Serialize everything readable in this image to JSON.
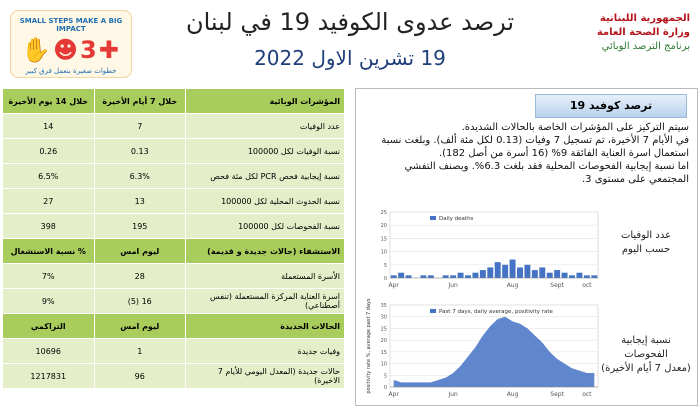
{
  "header": {
    "title": "ترصد عدوى الكوفيد 19 في لبنان",
    "date": "19 تشرين الاول 2022",
    "ministry": [
      "الجمهورية اللبنانية",
      "وزارة الصحة العامة",
      "برنامج الترصد الوبائي"
    ],
    "campaign": [
      "SMALL STEPS MAKE A BIG IMPACT",
      "خطوات صغيرة بتعمل فرق كبير"
    ]
  },
  "table": {
    "sections": [
      {
        "header": [
          "المؤشرات الوبائية",
          "خلال 7 أيام الأخيرة",
          "خلال 14 يوم الأخيرة"
        ],
        "rows": [
          [
            "عدد الوفيات",
            "7",
            "14"
          ],
          [
            "نسبة الوفيات لكل 100000",
            "0.13",
            "0.26"
          ],
          [
            "نسبة إيجابية فحص PCR لكل مئة فحص",
            "6.3%",
            "6.5%"
          ],
          [
            "نسبة الحدوث المحلية لكل 100000",
            "13",
            "27"
          ],
          [
            "نسبة الفحوصات لكل 100000",
            "195",
            "398"
          ]
        ]
      },
      {
        "header": [
          "الاستشفاء (حالات جديدة و قديمة)",
          "ليوم امس",
          "% نسبة الاستشغال"
        ],
        "rows": [
          [
            "الأسرة المستعملة",
            "28",
            "7%"
          ],
          [
            "اسرة العناية المركزة المستعملة (تنفس أصطناعي)",
            "16 (5)",
            "9%"
          ]
        ]
      },
      {
        "header": [
          "الحالات الجديدة",
          "ليوم امس",
          "التراكمي"
        ],
        "rows": [
          [
            "وفيات جديدة",
            "1",
            "10696"
          ],
          [
            "حالات جديدة (المعدل اليومي للأيام 7 الاخيرة)",
            "96",
            "1217831"
          ]
        ]
      }
    ]
  },
  "panel": {
    "heading": "ترصد كوفيد 19",
    "paragraphs": [
      "سيتم التركيز على المؤشرات الخاصة بالحالات الشديدة.",
      "في الأيام 7 الأخيرة، تم تسجيل 7 وفيات (0.13 لكل مئة ألف). وبلغت نسبة استعمال اسرة العناية الفائقة 9% (16 أسرة من أصل 182).",
      "اما نسبة إيجابية الفحوصات المحلية فقد بلغت 6.3%. ويصنف التفشي المجتمعي على مستوى 3."
    ],
    "chart_labels": [
      [
        "عدد الوفيات",
        "حسب اليوم"
      ],
      [
        "نسبة إيجابية الفحوصات",
        "(معدل 7 أيام الأخيرة)"
      ]
    ]
  },
  "chart_data": [
    {
      "type": "bar",
      "series": [
        {
          "name": "Daily deaths",
          "color": "#4472c4",
          "values": [
            1,
            2,
            1,
            0,
            1,
            1,
            0,
            1,
            1,
            2,
            1,
            2,
            3,
            4,
            6,
            5,
            7,
            4,
            5,
            3,
            4,
            2,
            3,
            2,
            1,
            2,
            1,
            1
          ]
        }
      ],
      "categories": [
        "Apr",
        null,
        null,
        null,
        null,
        null,
        null,
        null,
        "Jun",
        null,
        null,
        null,
        null,
        null,
        null,
        null,
        "Aug",
        null,
        null,
        null,
        null,
        null,
        "Sept",
        null,
        null,
        null,
        "oct",
        null
      ],
      "ylim": [
        0,
        25
      ],
      "yticks": [
        0,
        5,
        10,
        15,
        20,
        25
      ]
    },
    {
      "type": "area",
      "series": [
        {
          "name": "Past 7 days, daily average, positivity rate",
          "color": "#4472c4",
          "values": [
            3,
            2,
            2,
            2,
            2,
            2,
            3,
            4,
            6,
            9,
            13,
            17,
            22,
            26,
            29,
            30,
            28,
            27,
            25,
            22,
            19,
            15,
            12,
            10,
            8,
            7,
            6,
            6
          ]
        }
      ],
      "categories": [
        "Apr",
        null,
        null,
        null,
        null,
        null,
        null,
        null,
        "Jun",
        null,
        null,
        null,
        null,
        null,
        null,
        null,
        "Aug",
        null,
        null,
        null,
        null,
        null,
        "Sept",
        null,
        null,
        null,
        "oct",
        null
      ],
      "ylabel": "positivity rate %, average past 7 days",
      "ylim": [
        0,
        35
      ],
      "yticks": [
        0,
        5,
        10,
        15,
        20,
        25,
        30,
        35
      ]
    }
  ]
}
